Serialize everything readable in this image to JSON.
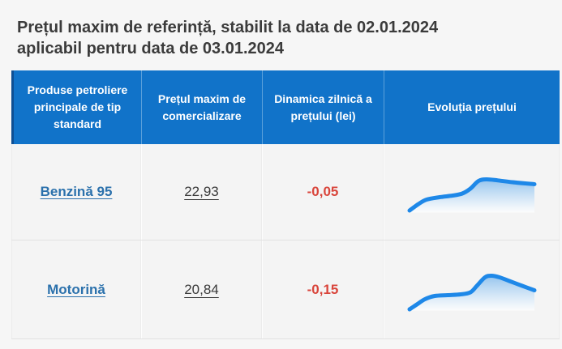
{
  "title": {
    "line1": "Prețul maxim de referință, stabilit la data de 02.01.2024",
    "line2": "aplicabil pentru data de 03.01.2024",
    "set_date": "02.01.2024",
    "applicable_date": "03.01.2024"
  },
  "table": {
    "headers": [
      "Produse petroliere principale de tip standard",
      "Prețul maxim de comercializare",
      "Dinamica zilnică a prețului (lei)",
      "Evoluția prețului"
    ],
    "rows": [
      {
        "product": "Benzină 95",
        "max_price": "22,93",
        "daily_dynamic": "-0,05",
        "trend_shape": "rise, plateau, sharp rise to peak, slight decline",
        "trend_points": [
          [
            3,
            51
          ],
          [
            14,
            43
          ],
          [
            24,
            37.5
          ],
          [
            40,
            34.5
          ],
          [
            56,
            32.5
          ],
          [
            68,
            30
          ],
          [
            78,
            24
          ],
          [
            88,
            14.5
          ],
          [
            98,
            12.5
          ],
          [
            112,
            13.8
          ],
          [
            130,
            16
          ],
          [
            157,
            18.5
          ]
        ]
      },
      {
        "product": "Motorină",
        "max_price": "20,84",
        "daily_dynamic": "-0,15",
        "trend_shape": "rise, plateau, sharp rise to peak, steady decline",
        "trend_points": [
          [
            3,
            52
          ],
          [
            12,
            46
          ],
          [
            22,
            39.5
          ],
          [
            34,
            35.5
          ],
          [
            50,
            34.5
          ],
          [
            66,
            33.5
          ],
          [
            78,
            31
          ],
          [
            86,
            23
          ],
          [
            96,
            12.5
          ],
          [
            104,
            10.5
          ],
          [
            114,
            12.5
          ],
          [
            126,
            17
          ],
          [
            142,
            23
          ],
          [
            157,
            28.5
          ]
        ]
      }
    ]
  },
  "colors": {
    "header_bg": "#1173c9",
    "header_accent_border": "#0d4f94",
    "header_text": "#ffffff",
    "link_blue": "#2b71ac",
    "negative_red": "#d9453b",
    "sparkline_stroke": "#1e88e8",
    "sparkline_fill_top": "#8fc1ed",
    "cell_bg": "#f4f4f4",
    "page_bg": "#f6f6f6",
    "title_text": "#3b3b3b"
  }
}
